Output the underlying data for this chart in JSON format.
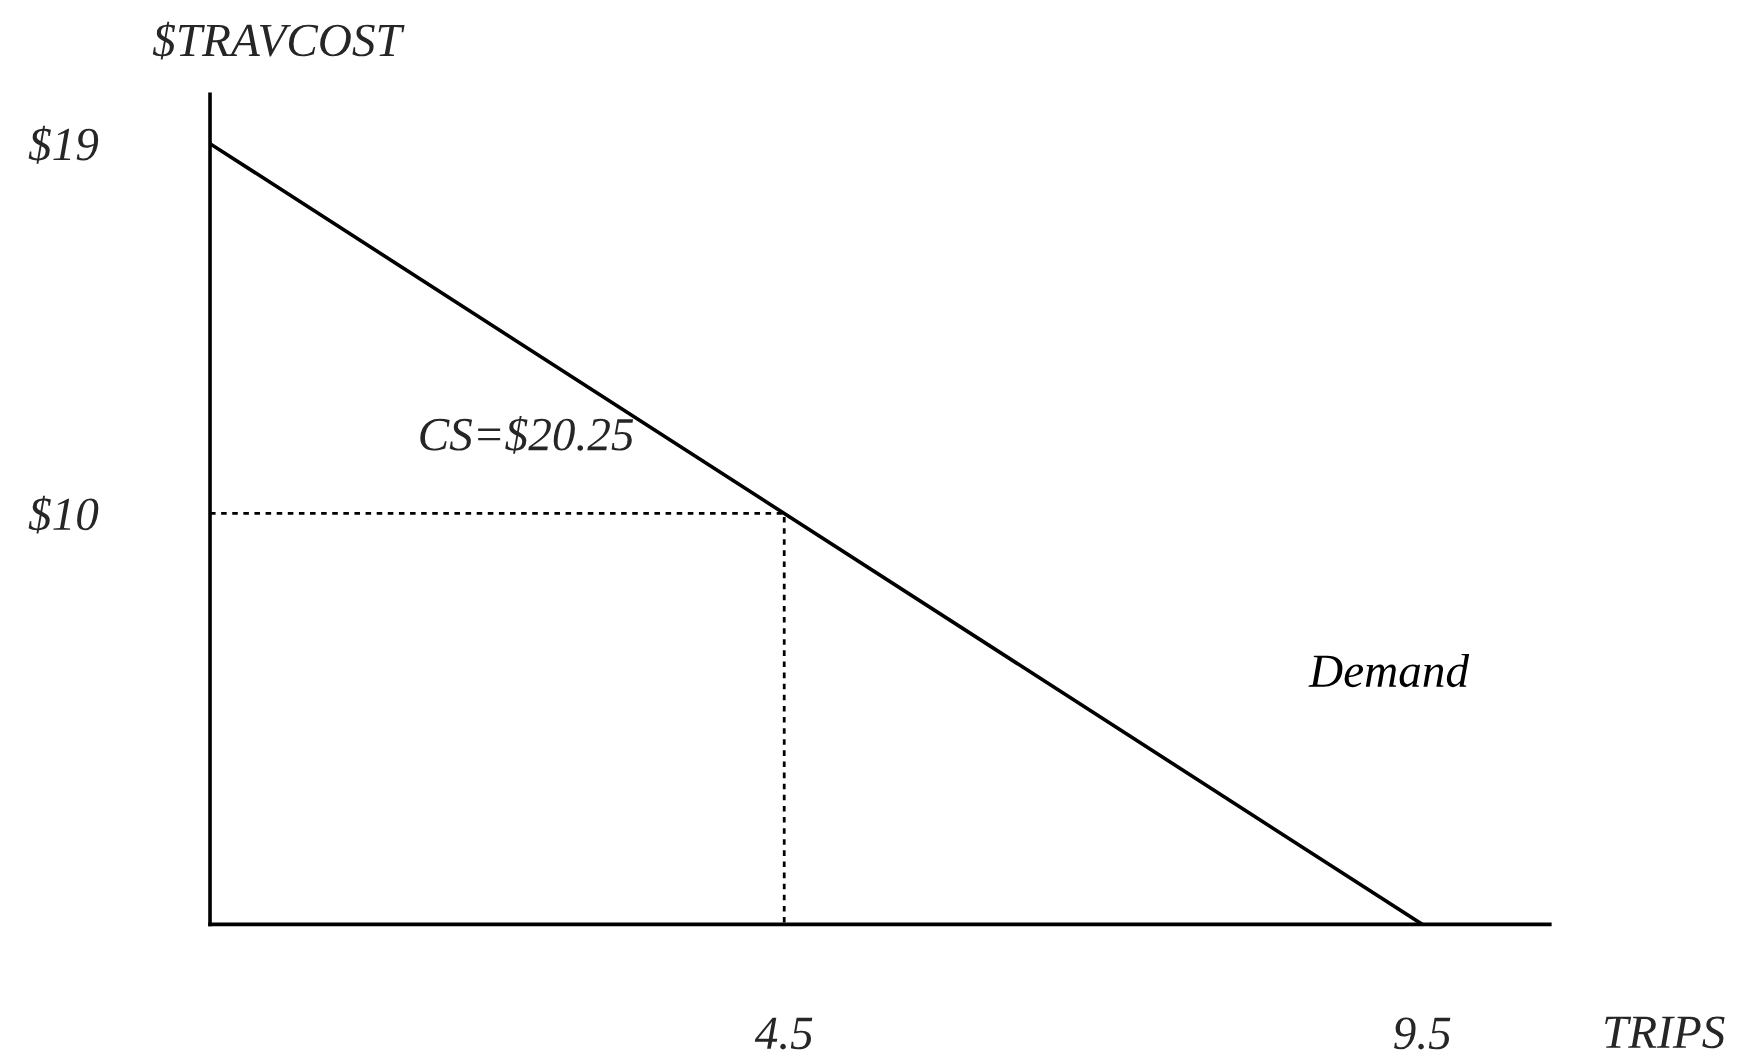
{
  "chart_data": {
    "type": "line",
    "xlabel": "TRIPS",
    "ylabel": "$TRAVCOST",
    "annotations": [
      "CS=$20.25"
    ],
    "xlim": [
      0,
      10.5
    ],
    "ylim": [
      0,
      20.2
    ],
    "xticks": [
      4.5,
      9.5
    ],
    "yticks": [
      {
        "value": 10,
        "label": "$10"
      },
      {
        "value": 19,
        "label": "$19"
      }
    ],
    "grid": false,
    "legend": false,
    "series": [
      {
        "name": "Demand",
        "color": "#000000",
        "x": [
          0,
          9.5
        ],
        "values": [
          19,
          0
        ],
        "line_style": "solid"
      },
      {
        "color": "#000000",
        "x": [
          0,
          4.5,
          4.5
        ],
        "values": [
          10,
          10,
          0
        ],
        "line_style": "dotted"
      }
    ]
  }
}
